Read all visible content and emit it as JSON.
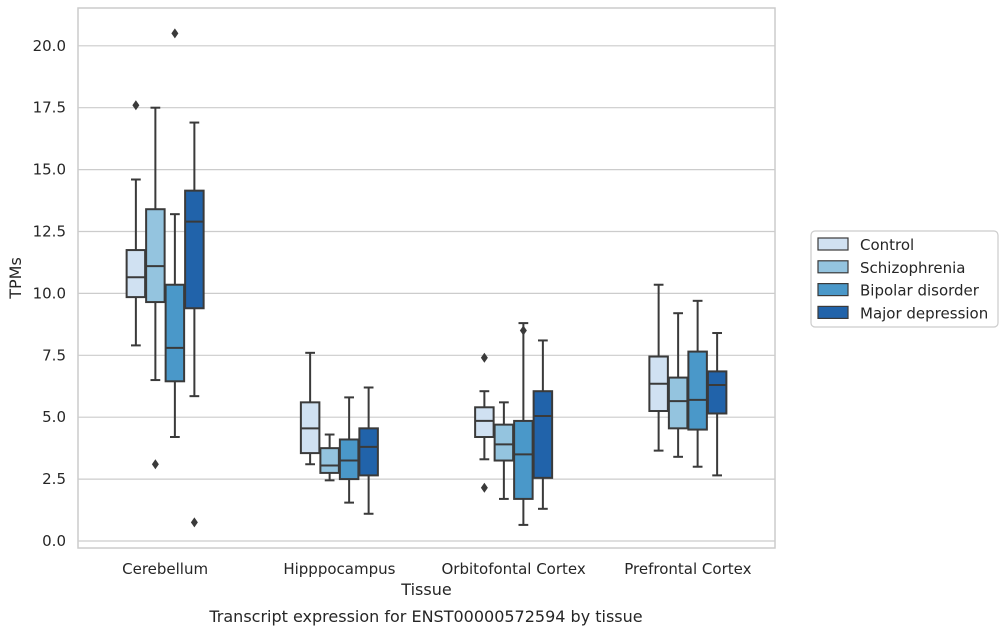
{
  "chart_data": {
    "type": "box",
    "title": "Transcript expression for ENST00000572594 by tissue",
    "xlabel": "Tissue",
    "ylabel": "TPMs",
    "ylim": [
      -0.3,
      21.5
    ],
    "yticks": [
      "0.0",
      "2.5",
      "5.0",
      "7.5",
      "10.0",
      "12.5",
      "15.0",
      "17.5",
      "20.0"
    ],
    "categories": [
      "Cerebellum",
      "Hipppocampus",
      "Orbitofontal Cortex",
      "Prefrontal Cortex"
    ],
    "grid": "horizontal",
    "legend_position": "right",
    "series": [
      {
        "name": "Control",
        "color": "#d0e1f2",
        "boxes": [
          {
            "whislo": 7.9,
            "q1": 9.85,
            "med": 10.65,
            "q3": 11.75,
            "whishi": 14.6,
            "fliers": [
              17.6
            ]
          },
          {
            "whislo": 3.1,
            "q1": 3.55,
            "med": 4.55,
            "q3": 5.6,
            "whishi": 7.6,
            "fliers": []
          },
          {
            "whislo": 3.3,
            "q1": 4.2,
            "med": 4.85,
            "q3": 5.4,
            "whishi": 6.05,
            "fliers": [
              7.4,
              2.15
            ]
          },
          {
            "whislo": 3.65,
            "q1": 5.25,
            "med": 6.35,
            "q3": 7.45,
            "whishi": 10.35,
            "fliers": []
          }
        ]
      },
      {
        "name": "Schizophrenia",
        "color": "#94c4df",
        "boxes": [
          {
            "whislo": 6.5,
            "q1": 9.65,
            "med": 11.1,
            "q3": 13.4,
            "whishi": 17.5,
            "fliers": [
              3.1
            ]
          },
          {
            "whislo": 2.45,
            "q1": 2.75,
            "med": 3.05,
            "q3": 3.75,
            "whishi": 4.3,
            "fliers": []
          },
          {
            "whislo": 1.7,
            "q1": 3.25,
            "med": 3.9,
            "q3": 4.7,
            "whishi": 5.6,
            "fliers": []
          },
          {
            "whislo": 3.4,
            "q1": 4.55,
            "med": 5.65,
            "q3": 6.6,
            "whishi": 9.2,
            "fliers": []
          }
        ]
      },
      {
        "name": "Bipolar disorder",
        "color": "#4a98c9",
        "boxes": [
          {
            "whislo": 4.2,
            "q1": 6.45,
            "med": 7.8,
            "q3": 10.35,
            "whishi": 13.2,
            "fliers": [
              20.5
            ]
          },
          {
            "whislo": 1.55,
            "q1": 2.5,
            "med": 3.25,
            "q3": 4.1,
            "whishi": 5.8,
            "fliers": []
          },
          {
            "whislo": 0.65,
            "q1": 1.7,
            "med": 3.5,
            "q3": 4.85,
            "whishi": 8.8,
            "fliers": [
              8.5
            ]
          },
          {
            "whislo": 3.0,
            "q1": 4.5,
            "med": 5.7,
            "q3": 7.65,
            "whishi": 9.7,
            "fliers": []
          }
        ]
      },
      {
        "name": "Major depression",
        "color": "#2163aa",
        "boxes": [
          {
            "whislo": 5.85,
            "q1": 9.4,
            "med": 12.9,
            "q3": 14.15,
            "whishi": 16.9,
            "fliers": [
              0.75
            ]
          },
          {
            "whislo": 1.1,
            "q1": 2.65,
            "med": 3.8,
            "q3": 4.55,
            "whishi": 6.2,
            "fliers": []
          },
          {
            "whislo": 1.3,
            "q1": 2.55,
            "med": 5.05,
            "q3": 6.05,
            "whishi": 8.1,
            "fliers": []
          },
          {
            "whislo": 2.65,
            "q1": 5.15,
            "med": 6.3,
            "q3": 6.85,
            "whishi": 8.4,
            "fliers": []
          }
        ]
      }
    ]
  }
}
